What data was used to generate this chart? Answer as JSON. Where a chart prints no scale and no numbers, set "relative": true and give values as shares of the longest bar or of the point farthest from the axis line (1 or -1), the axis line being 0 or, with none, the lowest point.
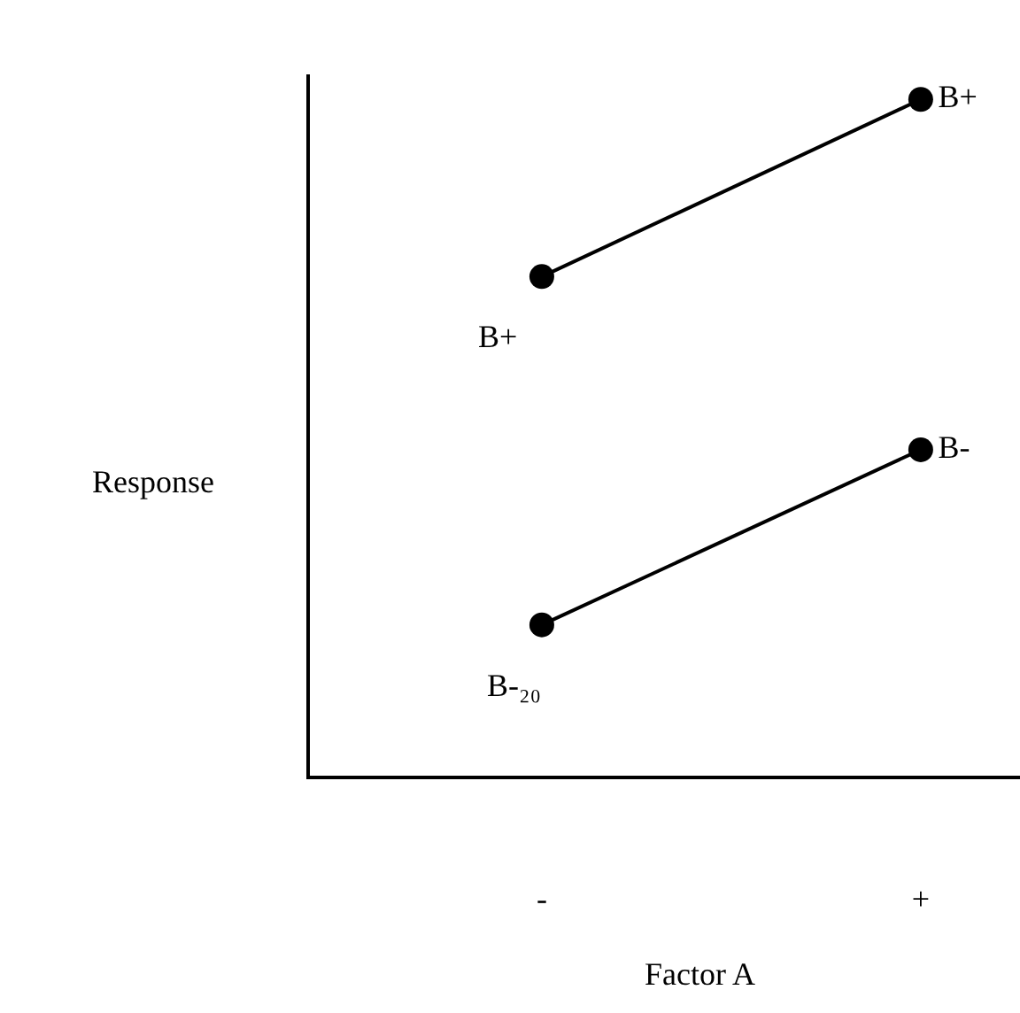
{
  "chart_data": {
    "type": "line",
    "relative": true,
    "categories": [
      "-",
      "+"
    ],
    "xlabel": "Factor A",
    "ylabel": "Response",
    "marker": "circle",
    "line_style": "solid",
    "legend": false,
    "series": [
      {
        "name": "B+",
        "color": "#000000",
        "values": [
          0.738,
          1
        ]
      },
      {
        "name": "B-",
        "color": "#000000",
        "values": [
          0.223,
          0.482
        ]
      }
    ],
    "annotations": [
      {
        "text": "B+",
        "x": "-",
        "y": 0.738
      },
      {
        "text": "B-₂₀",
        "x": "-",
        "y": 0.223
      }
    ]
  }
}
